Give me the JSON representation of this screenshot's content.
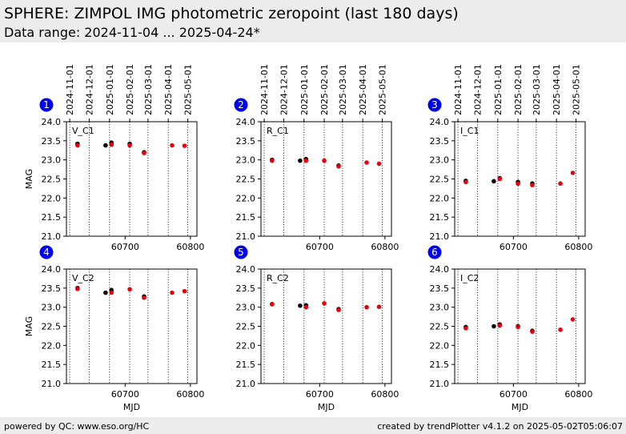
{
  "header": {
    "title": "SPHERE: ZIMPOL IMG photometric zeropoint (last 180 days)",
    "subtitle": "Data range: 2024-11-04 ... 2025-04-24*"
  },
  "footer": {
    "left": "powered by QC: www.eso.org/HC",
    "right": "created by trendPlotter v4.1.2 on 2025-05-02T05:06:07"
  },
  "colors": {
    "black_points": "#000000",
    "red_points": "#e8000b",
    "badge": "#0000ee"
  },
  "chart_data": [
    {
      "type": "scatter",
      "panel_number": "1",
      "label": "V_C1",
      "ylabel": "MAG",
      "xlabel": "",
      "ylim": [
        21.0,
        24.0
      ],
      "yticks": [
        21.0,
        21.5,
        22.0,
        22.5,
        23.0,
        23.5,
        24.0
      ],
      "xticks": [
        60700,
        60800
      ],
      "show_xtick_labels": true,
      "show_top_dates": true,
      "date_ticks": [
        "2024-11-01",
        "2024-12-01",
        "2025-01-01",
        "2025-02-01",
        "2025-03-01",
        "2025-04-01",
        "2025-05-01"
      ],
      "black": [
        [
          60627,
          23.42
        ],
        [
          60670,
          23.38
        ],
        [
          60679,
          23.45
        ],
        [
          60707,
          23.42
        ],
        [
          60729,
          23.2
        ]
      ],
      "red": [
        [
          60627,
          23.38
        ],
        [
          60679,
          23.4
        ],
        [
          60707,
          23.38
        ],
        [
          60729,
          23.18
        ],
        [
          60772,
          23.38
        ],
        [
          60791,
          23.37
        ]
      ]
    },
    {
      "type": "scatter",
      "panel_number": "2",
      "label": "R_C1",
      "ylabel": "",
      "xlabel": "",
      "ylim": [
        21.0,
        24.0
      ],
      "yticks": [
        21.0,
        21.5,
        22.0,
        22.5,
        23.0,
        23.5,
        24.0
      ],
      "xticks": [
        60700,
        60800
      ],
      "show_xtick_labels": true,
      "show_top_dates": true,
      "date_ticks": [
        "2024-11-01",
        "2024-12-01",
        "2025-01-01",
        "2025-02-01",
        "2025-03-01",
        "2025-04-01",
        "2025-05-01"
      ],
      "black": [
        [
          60627,
          23.0
        ],
        [
          60670,
          22.98
        ],
        [
          60679,
          23.02
        ],
        [
          60729,
          22.85
        ]
      ],
      "red": [
        [
          60627,
          22.98
        ],
        [
          60679,
          22.98
        ],
        [
          60707,
          22.98
        ],
        [
          60729,
          22.83
        ],
        [
          60772,
          22.93
        ],
        [
          60791,
          22.9
        ]
      ]
    },
    {
      "type": "scatter",
      "panel_number": "3",
      "label": "I_C1",
      "ylabel": "",
      "xlabel": "",
      "ylim": [
        21.0,
        24.0
      ],
      "yticks": [
        21.0,
        21.5,
        22.0,
        22.5,
        23.0,
        23.5,
        24.0
      ],
      "xticks": [
        60700,
        60800
      ],
      "show_xtick_labels": true,
      "show_top_dates": true,
      "date_ticks": [
        "2024-11-01",
        "2024-12-01",
        "2025-01-01",
        "2025-02-01",
        "2025-03-01",
        "2025-04-01",
        "2025-05-01"
      ],
      "black": [
        [
          60627,
          22.45
        ],
        [
          60670,
          22.44
        ],
        [
          60679,
          22.52
        ],
        [
          60707,
          22.42
        ],
        [
          60729,
          22.38
        ]
      ],
      "red": [
        [
          60627,
          22.42
        ],
        [
          60679,
          22.5
        ],
        [
          60707,
          22.38
        ],
        [
          60729,
          22.34
        ],
        [
          60772,
          22.38
        ],
        [
          60791,
          22.66
        ]
      ]
    },
    {
      "type": "scatter",
      "panel_number": "4",
      "label": "V_C2",
      "ylabel": "MAG",
      "xlabel": "MJD",
      "ylim": [
        21.0,
        24.0
      ],
      "yticks": [
        21.0,
        21.5,
        22.0,
        22.5,
        23.0,
        23.5,
        24.0
      ],
      "xticks": [
        60700,
        60800
      ],
      "show_xtick_labels": true,
      "show_top_dates": false,
      "date_ticks": [
        "2024-11-01",
        "2024-12-01",
        "2025-01-01",
        "2025-02-01",
        "2025-03-01",
        "2025-04-01",
        "2025-05-01"
      ],
      "black": [
        [
          60627,
          23.5
        ],
        [
          60670,
          23.38
        ],
        [
          60679,
          23.45
        ],
        [
          60729,
          23.28
        ]
      ],
      "red": [
        [
          60627,
          23.48
        ],
        [
          60679,
          23.38
        ],
        [
          60707,
          23.47
        ],
        [
          60729,
          23.25
        ],
        [
          60772,
          23.38
        ],
        [
          60791,
          23.42
        ]
      ]
    },
    {
      "type": "scatter",
      "panel_number": "5",
      "label": "R_C2",
      "ylabel": "",
      "xlabel": "MJD",
      "ylim": [
        21.0,
        24.0
      ],
      "yticks": [
        21.0,
        21.5,
        22.0,
        22.5,
        23.0,
        23.5,
        24.0
      ],
      "xticks": [
        60700,
        60800
      ],
      "show_xtick_labels": true,
      "show_top_dates": false,
      "date_ticks": [
        "2024-11-01",
        "2024-12-01",
        "2025-01-01",
        "2025-02-01",
        "2025-03-01",
        "2025-04-01",
        "2025-05-01"
      ],
      "black": [
        [
          60627,
          23.08
        ],
        [
          60670,
          23.04
        ],
        [
          60679,
          23.05
        ],
        [
          60729,
          22.95
        ]
      ],
      "red": [
        [
          60627,
          23.08
        ],
        [
          60679,
          23.0
        ],
        [
          60707,
          23.1
        ],
        [
          60729,
          22.93
        ],
        [
          60772,
          23.0
        ],
        [
          60791,
          23.01
        ]
      ]
    },
    {
      "type": "scatter",
      "panel_number": "6",
      "label": "I_C2",
      "ylabel": "",
      "xlabel": "MJD",
      "ylim": [
        21.0,
        24.0
      ],
      "yticks": [
        21.0,
        21.5,
        22.0,
        22.5,
        23.0,
        23.5,
        24.0
      ],
      "xticks": [
        60700,
        60800
      ],
      "show_xtick_labels": true,
      "show_top_dates": false,
      "date_ticks": [
        "2024-11-01",
        "2024-12-01",
        "2025-01-01",
        "2025-02-01",
        "2025-03-01",
        "2025-04-01",
        "2025-05-01"
      ],
      "black": [
        [
          60627,
          22.48
        ],
        [
          60670,
          22.5
        ],
        [
          60679,
          22.55
        ],
        [
          60707,
          22.5
        ],
        [
          60729,
          22.38
        ]
      ],
      "red": [
        [
          60627,
          22.45
        ],
        [
          60679,
          22.52
        ],
        [
          60707,
          22.48
        ],
        [
          60729,
          22.36
        ],
        [
          60772,
          22.41
        ],
        [
          60791,
          22.68
        ]
      ]
    }
  ]
}
